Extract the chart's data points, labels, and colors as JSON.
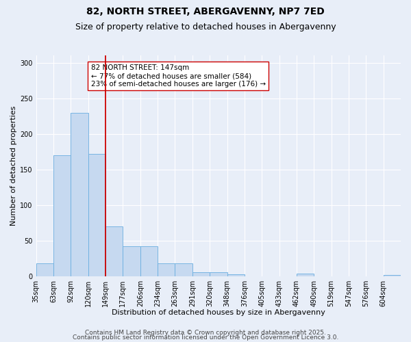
{
  "title_line1": "82, NORTH STREET, ABERGAVENNY, NP7 7ED",
  "title_line2": "Size of property relative to detached houses in Abergavenny",
  "xlabel": "Distribution of detached houses by size in Abergavenny",
  "ylabel": "Number of detached properties",
  "annotation_line1": "82 NORTH STREET: 147sqm",
  "annotation_line2": "← 77% of detached houses are smaller (584)",
  "annotation_line3": "23% of semi-detached houses are larger (176) →",
  "bar_color": "#c6d9f0",
  "bar_edge_color": "#6aaee0",
  "vline_color": "#cc0000",
  "vline_bin": 4,
  "categories": [
    "35sqm",
    "63sqm",
    "92sqm",
    "120sqm",
    "149sqm",
    "177sqm",
    "206sqm",
    "234sqm",
    "263sqm",
    "291sqm",
    "320sqm",
    "348sqm",
    "376sqm",
    "405sqm",
    "433sqm",
    "462sqm",
    "490sqm",
    "519sqm",
    "547sqm",
    "576sqm",
    "604sqm"
  ],
  "values": [
    18,
    170,
    230,
    172,
    70,
    42,
    42,
    18,
    18,
    6,
    6,
    3,
    0,
    0,
    0,
    4,
    0,
    0,
    0,
    0,
    2
  ],
  "ylim": [
    0,
    310
  ],
  "yticks": [
    0,
    50,
    100,
    150,
    200,
    250,
    300
  ],
  "footer1": "Contains HM Land Registry data © Crown copyright and database right 2025.",
  "footer2": "Contains public sector information licensed under the Open Government Licence 3.0.",
  "background_color": "#e8eef8",
  "plot_bg_color": "#e8eef8",
  "grid_color": "#ffffff",
  "title_fontsize": 10,
  "subtitle_fontsize": 9,
  "axis_label_fontsize": 8,
  "tick_fontsize": 7,
  "annotation_fontsize": 7.5,
  "footer_fontsize": 6.5
}
